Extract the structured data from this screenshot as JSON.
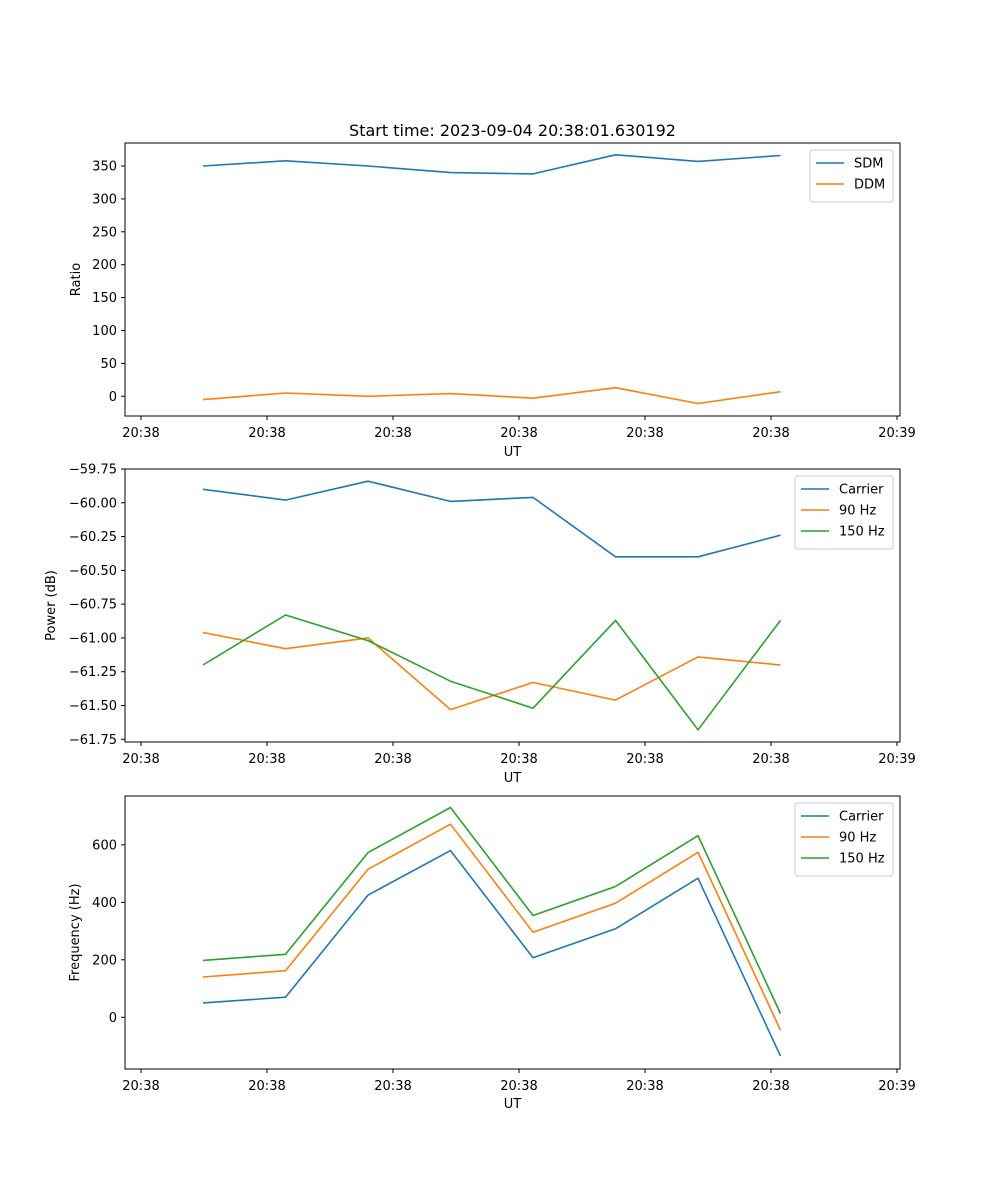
{
  "chart_data": [
    {
      "type": "line",
      "title": "Start time: 2023-09-04 20:38:01.630192",
      "xlabel": "UT",
      "ylabel": "Ratio",
      "x_tick_labels": [
        "20:38",
        "20:38",
        "20:38",
        "20:38",
        "20:38",
        "20:38",
        "20:39"
      ],
      "ylim": [
        -30,
        385
      ],
      "y_ticks": [
        0,
        50,
        100,
        150,
        200,
        250,
        300,
        350
      ],
      "y_tick_labels": [
        "0",
        "50",
        "100",
        "150",
        "200",
        "250",
        "300",
        "350"
      ],
      "legend": "top-right",
      "series": [
        {
          "name": "SDM",
          "color": "#1f77b4",
          "values": [
            350,
            358,
            350,
            340,
            338,
            367,
            357,
            366
          ]
        },
        {
          "name": "DDM",
          "color": "#ff7f0e",
          "values": [
            -5,
            5,
            0,
            4,
            -3,
            13,
            -11,
            7
          ]
        }
      ]
    },
    {
      "type": "line",
      "title": "",
      "xlabel": "UT",
      "ylabel": "Power (dB)",
      "x_tick_labels": [
        "20:38",
        "20:38",
        "20:38",
        "20:38",
        "20:38",
        "20:38",
        "20:39"
      ],
      "ylim": [
        -61.77,
        -59.75
      ],
      "y_ticks": [
        -59.75,
        -60.0,
        -60.25,
        -60.5,
        -60.75,
        -61.0,
        -61.25,
        -61.5,
        -61.75
      ],
      "y_tick_labels": [
        "−59.75",
        "−60.00",
        "−60.25",
        "−60.50",
        "−60.75",
        "−61.00",
        "−61.25",
        "−61.50",
        "−61.75"
      ],
      "legend": "top-right",
      "series": [
        {
          "name": "Carrier",
          "color": "#1f77b4",
          "values": [
            -59.9,
            -59.98,
            -59.84,
            -59.99,
            -59.96,
            -60.4,
            -60.4,
            -60.24
          ]
        },
        {
          "name": "90 Hz",
          "color": "#ff7f0e",
          "values": [
            -60.96,
            -61.08,
            -61.0,
            -61.53,
            -61.33,
            -61.46,
            -61.14,
            -61.2
          ]
        },
        {
          "name": "150 Hz",
          "color": "#2ca02c",
          "values": [
            -61.2,
            -60.83,
            -61.02,
            -61.32,
            -61.52,
            -60.87,
            -61.68,
            -60.87
          ]
        }
      ]
    },
    {
      "type": "line",
      "title": "",
      "xlabel": "UT",
      "ylabel": "Frequency (Hz)",
      "x_tick_labels": [
        "20:38",
        "20:38",
        "20:38",
        "20:38",
        "20:38",
        "20:38",
        "20:39"
      ],
      "ylim": [
        -180,
        770
      ],
      "y_ticks": [
        0,
        200,
        400,
        600
      ],
      "y_tick_labels": [
        "0",
        "200",
        "400",
        "600"
      ],
      "legend": "top-right",
      "series": [
        {
          "name": "Carrier",
          "color": "#1f77b4",
          "values": [
            50,
            70,
            425,
            580,
            207,
            308,
            484,
            -135
          ]
        },
        {
          "name": "90 Hz",
          "color": "#ff7f0e",
          "values": [
            140,
            162,
            515,
            672,
            296,
            397,
            574,
            -45
          ]
        },
        {
          "name": "150 Hz",
          "color": "#2ca02c",
          "values": [
            198,
            219,
            573,
            730,
            354,
            455,
            632,
            13
          ]
        }
      ]
    }
  ]
}
